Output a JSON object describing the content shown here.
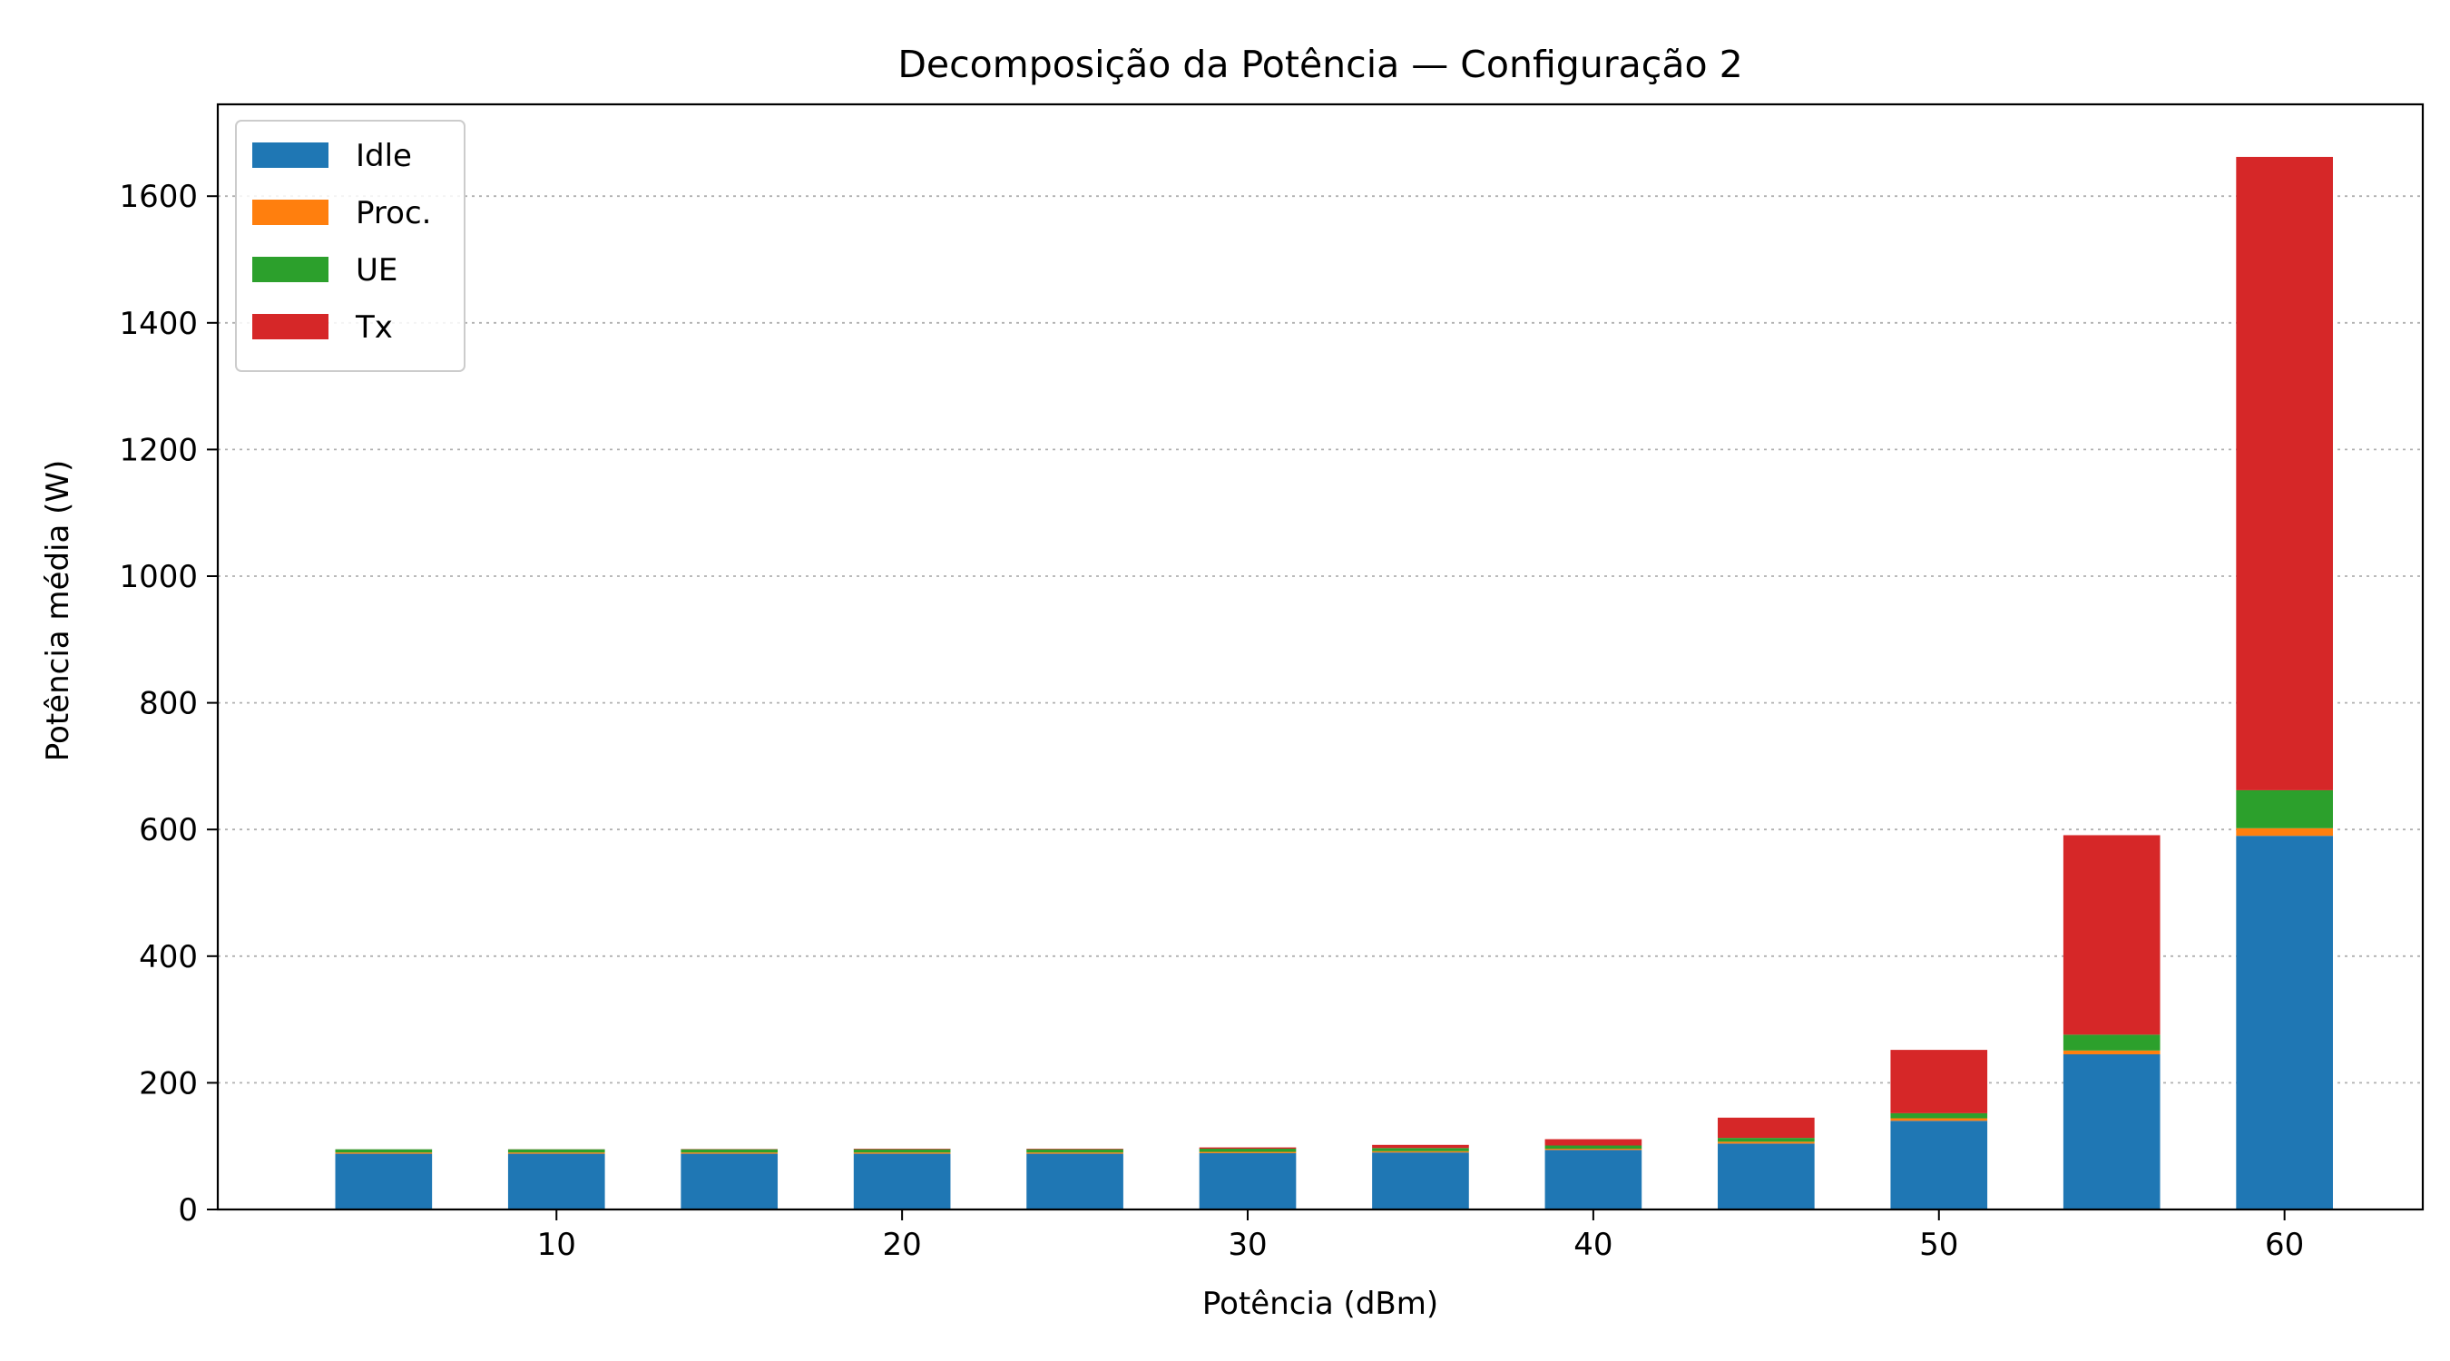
{
  "chart_data": {
    "type": "bar",
    "stacked": true,
    "title": "Decomposição da Potência — Configuração 2",
    "xlabel": "Potência (dBm)",
    "ylabel": "Potência média (W)",
    "x": [
      5,
      10,
      15,
      20,
      25,
      30,
      35,
      40,
      45,
      50,
      55,
      60
    ],
    "bar_width": 2.8,
    "xlim": [
      0.2,
      64.0
    ],
    "ylim": [
      0,
      1745
    ],
    "xticks": [
      10,
      20,
      30,
      40,
      50,
      60
    ],
    "yticks": [
      0,
      200,
      400,
      600,
      800,
      1000,
      1200,
      1400,
      1600
    ],
    "grid": "y-dotted",
    "legend_position": "top-left",
    "series": [
      {
        "name": "Idle",
        "color": "#1f77b4",
        "values": [
          88,
          88,
          88,
          88,
          88,
          89,
          90,
          94,
          104,
          140,
          245,
          590
        ]
      },
      {
        "name": "Proc.",
        "color": "#ff7f0e",
        "values": [
          2,
          2,
          2,
          2,
          2,
          2,
          2,
          2,
          3,
          4,
          6,
          12
        ]
      },
      {
        "name": "UE",
        "color": "#2ca02c",
        "values": [
          5,
          5,
          5,
          5,
          5,
          5,
          5,
          5,
          6,
          8,
          25,
          60
        ]
      },
      {
        "name": "Tx",
        "color": "#d62728",
        "values": [
          0.1,
          0.2,
          0.5,
          1,
          1,
          2,
          5,
          10,
          32,
          100,
          315,
          1000
        ]
      }
    ]
  }
}
